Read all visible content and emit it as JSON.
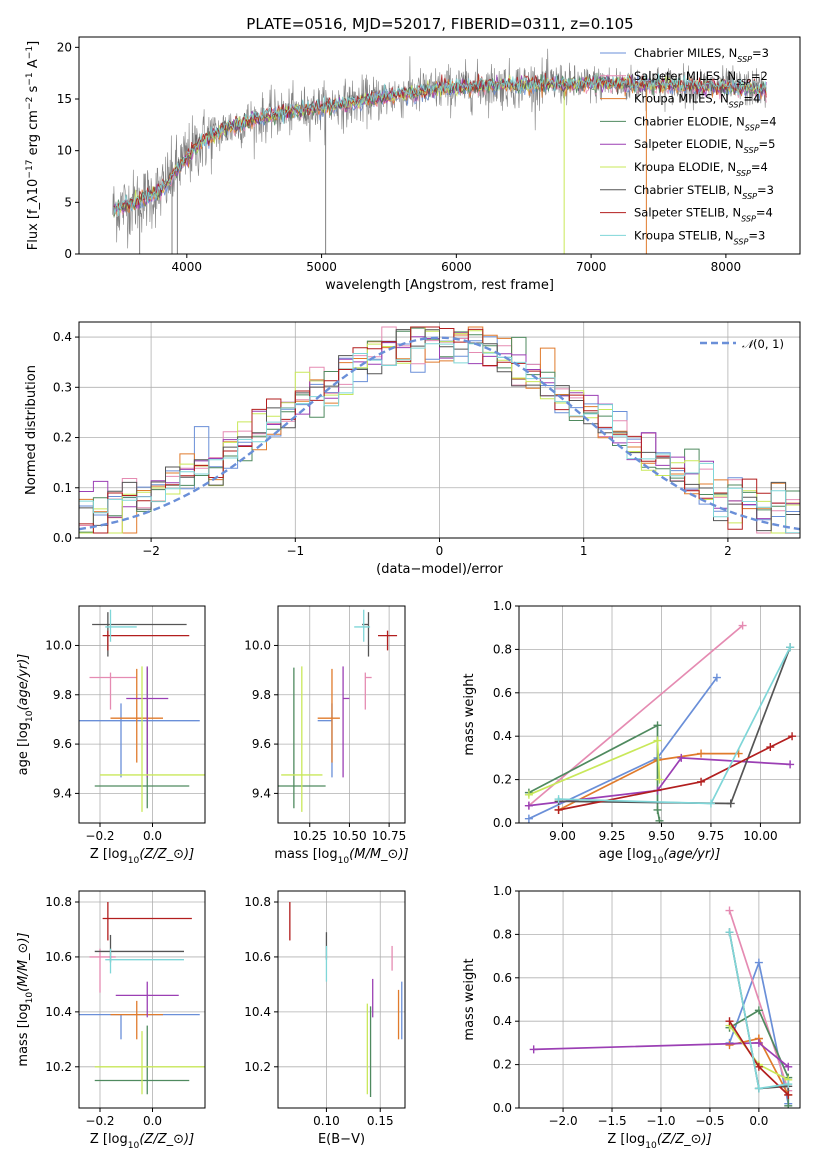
{
  "figure_title": "PLATE=0516, MJD=52017, FIBERID=0311, z=0.105",
  "colors": {
    "Chabrier MILES": "#6a8fd8",
    "Salpeter MILES": "#e58bb2",
    "Kroupa MILES": "#e07b2c",
    "Chabrier ELODIE": "#4f8a5f",
    "Salpeter ELODIE": "#9b3fb4",
    "Kroupa ELODIE": "#c9e85a",
    "Chabrier STELIB": "#555555",
    "Salpeter STELIB": "#b21e1e",
    "Kroupa STELIB": "#7fd6d8",
    "data": "#808080",
    "normal": "#6a8fd8"
  },
  "chart_data": [
    {
      "id": "spectrum",
      "type": "line",
      "title": "PLATE=0516, MJD=52017, FIBERID=0311, z=0.105",
      "xlabel": "wavelength [Angstrom, rest frame]",
      "ylabel": "Flux [f$_\\lambda$10$^{-17}$ erg cm$^{-2}$ s$^{-1}$ A$^{-1}$]",
      "xlim": [
        3200,
        8550
      ],
      "ylim": [
        0,
        21
      ],
      "xticks": [
        4000,
        5000,
        6000,
        7000,
        8000
      ],
      "yticks": [
        0,
        5,
        10,
        15,
        20
      ],
      "grid": false,
      "legend_position": "upper-right",
      "legend": [
        {
          "name": "Chabrier MILES",
          "nssp": "3"
        },
        {
          "name": "Salpeter MILES",
          "nssp": "2"
        },
        {
          "name": "Kroupa MILES",
          "nssp": "4"
        },
        {
          "name": "Chabrier ELODIE",
          "nssp": "4"
        },
        {
          "name": "Salpeter ELODIE",
          "nssp": "5"
        },
        {
          "name": "Kroupa ELODIE",
          "nssp": "4"
        },
        {
          "name": "Chabrier STELIB",
          "nssp": "3"
        },
        {
          "name": "Salpeter STELIB",
          "nssp": "4"
        },
        {
          "name": "Kroupa STELIB",
          "nssp": "3"
        }
      ],
      "continuum": {
        "x": [
          3450,
          3600,
          3800,
          3950,
          4100,
          4300,
          4500,
          4700,
          4900,
          5100,
          5300,
          5500,
          5700,
          5900,
          6100,
          6300,
          6500,
          6700,
          6900,
          7100,
          7300,
          7500,
          7700,
          7900,
          8100,
          8300
        ],
        "y": [
          4.3,
          4.9,
          6.0,
          8.6,
          10.8,
          12.2,
          13.0,
          13.6,
          14.0,
          14.4,
          14.8,
          15.3,
          15.6,
          16.0,
          16.2,
          16.3,
          16.4,
          16.4,
          16.4,
          16.5,
          16.4,
          16.4,
          16.3,
          16.2,
          16.1,
          15.9
        ]
      }
    },
    {
      "id": "residuals",
      "type": "histogram",
      "xlabel": "(data-model)/error",
      "ylabel": "Normed distribution",
      "xlim": [
        -2.5,
        2.5
      ],
      "ylim": [
        0,
        0.43
      ],
      "xticks": [
        -2,
        -1,
        0,
        1,
        2
      ],
      "yticks": [
        0.0,
        0.1,
        0.2,
        0.3,
        0.4
      ],
      "grid": true,
      "legend_position": "upper-right",
      "normal_label": "$\\mathcal{N}(0,1)$",
      "normal_mean": 0,
      "normal_sigma": 1
    },
    {
      "id": "age-vs-Z",
      "type": "errorbar",
      "xlabel": "Z [log$_{10}$(Z/Z$_\\odot$)]",
      "ylabel": "age  [log$_{10}$(age/yr)]",
      "xlim": [
        -0.28,
        0.2
      ],
      "ylim": [
        9.28,
        10.16
      ],
      "xticks": [
        -0.2,
        0.0
      ],
      "yticks": [
        9.4,
        9.6,
        9.8,
        10.0
      ],
      "grid": true,
      "points": [
        {
          "model": "Chabrier MILES",
          "x": -0.12,
          "xerr": [
            0.16,
            0.3
          ],
          "y": 9.695,
          "yerr": [
            0.23,
            0.07
          ]
        },
        {
          "model": "Salpeter MILES",
          "x": -0.16,
          "xerr": [
            0.08,
            0.1
          ],
          "y": 9.87,
          "yerr": [
            0.13,
            0.02
          ]
        },
        {
          "model": "Kroupa MILES",
          "x": -0.06,
          "xerr": [
            0.1,
            0.1
          ],
          "y": 9.705,
          "yerr": [
            0.18,
            0.2
          ]
        },
        {
          "model": "Chabrier ELODIE",
          "x": -0.02,
          "xerr": [
            0.2,
            0.16
          ],
          "y": 9.43,
          "yerr": [
            0.09,
            0.48
          ]
        },
        {
          "model": "Salpeter ELODIE",
          "x": -0.02,
          "xerr": [
            0.08,
            0.08
          ],
          "y": 9.785,
          "yerr": [
            0.32,
            0.13
          ]
        },
        {
          "model": "Kroupa ELODIE",
          "x": -0.04,
          "xerr": [
            0.16,
            0.24
          ],
          "y": 9.475,
          "yerr": [
            0.15,
            0.44
          ]
        },
        {
          "model": "Chabrier STELIB",
          "x": -0.17,
          "xerr": [
            0.06,
            0.3
          ],
          "y": 10.085,
          "yerr": [
            0.13,
            0.05
          ]
        },
        {
          "model": "Salpeter STELIB",
          "x": -0.17,
          "xerr": [
            0.02,
            0.31
          ],
          "y": 10.04,
          "yerr": [
            0.06,
            0.02
          ]
        },
        {
          "model": "Kroupa STELIB",
          "x": -0.16,
          "xerr": [
            0.02,
            0.1
          ],
          "y": 10.075,
          "yerr": [
            0.06,
            0.07
          ]
        }
      ]
    },
    {
      "id": "age-vs-mass",
      "type": "errorbar",
      "xlabel": "mass [log$_{10}$(M/M$_\\odot$)]",
      "ylabel": "",
      "xlim": [
        10.05,
        10.85
      ],
      "ylim": [
        9.28,
        10.16
      ],
      "xticks": [
        10.25,
        10.5,
        10.75
      ],
      "yticks": [
        9.4,
        9.6,
        9.8,
        10.0
      ],
      "grid": true,
      "points": [
        {
          "model": "Chabrier MILES",
          "x": 10.39,
          "xerr": [
            0.09,
            0.0
          ],
          "y": 9.695,
          "yerr": [
            0.23,
            0.07
          ]
        },
        {
          "model": "Salpeter MILES",
          "x": 10.6,
          "xerr": [
            0.0,
            0.04
          ],
          "y": 9.87,
          "yerr": [
            0.13,
            0.02
          ]
        },
        {
          "model": "Kroupa MILES",
          "x": 10.39,
          "xerr": [
            0.09,
            0.05
          ],
          "y": 9.705,
          "yerr": [
            0.18,
            0.2
          ]
        },
        {
          "model": "Chabrier ELODIE",
          "x": 10.15,
          "xerr": [
            0.14,
            0.2
          ],
          "y": 9.43,
          "yerr": [
            0.09,
            0.48
          ]
        },
        {
          "model": "Salpeter ELODIE",
          "x": 10.46,
          "xerr": [
            0.0,
            0.04
          ],
          "y": 9.785,
          "yerr": [
            0.32,
            0.13
          ]
        },
        {
          "model": "Kroupa ELODIE",
          "x": 10.2,
          "xerr": [
            0.13,
            0.13
          ],
          "y": 9.475,
          "yerr": [
            0.15,
            0.44
          ]
        },
        {
          "model": "Chabrier STELIB",
          "x": 10.62,
          "xerr": [
            0.04,
            0.0
          ],
          "y": 10.085,
          "yerr": [
            0.13,
            0.05
          ]
        },
        {
          "model": "Salpeter STELIB",
          "x": 10.74,
          "xerr": [
            0.06,
            0.06
          ],
          "y": 10.04,
          "yerr": [
            0.06,
            0.02
          ]
        },
        {
          "model": "Kroupa STELIB",
          "x": 10.59,
          "xerr": [
            0.06,
            0.04
          ],
          "y": 10.075,
          "yerr": [
            0.06,
            0.07
          ]
        }
      ]
    },
    {
      "id": "weight-vs-age",
      "type": "line",
      "xlabel": "age  [log$_{10}$(age/yr)]",
      "ylabel": "mass weight",
      "xlim": [
        8.78,
        10.2
      ],
      "ylim": [
        0,
        1
      ],
      "xticks": [
        9.0,
        9.25,
        9.5,
        9.75,
        10.0
      ],
      "yticks": [
        0.0,
        0.2,
        0.4,
        0.6,
        0.8,
        1.0
      ],
      "grid": true,
      "series": [
        {
          "model": "Chabrier MILES",
          "x": [
            8.83,
            9.48,
            9.78
          ],
          "y": [
            0.02,
            0.3,
            0.67
          ]
        },
        {
          "model": "Salpeter MILES",
          "x": [
            8.83,
            9.91
          ],
          "y": [
            0.08,
            0.91
          ]
        },
        {
          "model": "Kroupa MILES",
          "x": [
            8.98,
            9.48,
            9.7,
            9.89
          ],
          "y": [
            0.06,
            0.29,
            0.32,
            0.32
          ]
        },
        {
          "model": "Chabrier ELODIE",
          "x": [
            8.83,
            9.48,
            9.48,
            9.49
          ],
          "y": [
            0.14,
            0.45,
            0.06,
            0.01
          ]
        },
        {
          "model": "Salpeter ELODIE",
          "x": [
            8.83,
            9.48,
            9.6,
            10.15
          ],
          "y": [
            0.08,
            0.15,
            0.3,
            0.27
          ]
        },
        {
          "model": "Kroupa ELODIE",
          "x": [
            8.83,
            9.48,
            9.49
          ],
          "y": [
            0.13,
            0.38,
            0.2
          ]
        },
        {
          "model": "Chabrier STELIB",
          "x": [
            8.98,
            9.85,
            10.15
          ],
          "y": [
            0.1,
            0.09,
            0.81
          ]
        },
        {
          "model": "Salpeter STELIB",
          "x": [
            8.98,
            9.7,
            10.05,
            10.16
          ],
          "y": [
            0.06,
            0.19,
            0.35,
            0.4
          ]
        },
        {
          "model": "Kroupa STELIB",
          "x": [
            8.98,
            9.75,
            10.15
          ],
          "y": [
            0.11,
            0.09,
            0.81
          ]
        }
      ]
    },
    {
      "id": "mass-vs-Z",
      "type": "errorbar",
      "xlabel": "Z [log$_{10}$(Z/Z$_\\odot$)]",
      "ylabel": "mass [log$_{10}$(M/M$_\\odot$)]",
      "xlim": [
        -0.28,
        0.2
      ],
      "ylim": [
        10.05,
        10.84
      ],
      "xticks": [
        -0.2,
        0.0
      ],
      "yticks": [
        10.2,
        10.4,
        10.6,
        10.8
      ],
      "grid": true,
      "points": [
        {
          "model": "Chabrier MILES",
          "x": -0.12,
          "xerr": [
            0.16,
            0.3
          ],
          "y": 10.39,
          "yerr": [
            0.09,
            0.0
          ]
        },
        {
          "model": "Salpeter MILES",
          "x": -0.2,
          "xerr": [
            0.04,
            0.06
          ],
          "y": 10.6,
          "yerr": [
            0.13,
            0.03
          ]
        },
        {
          "model": "Kroupa MILES",
          "x": -0.06,
          "xerr": [
            0.1,
            0.1
          ],
          "y": 10.39,
          "yerr": [
            0.09,
            0.05
          ]
        },
        {
          "model": "Chabrier ELODIE",
          "x": -0.02,
          "xerr": [
            0.2,
            0.16
          ],
          "y": 10.15,
          "yerr": [
            0.05,
            0.2
          ]
        },
        {
          "model": "Salpeter ELODIE",
          "x": -0.02,
          "xerr": [
            0.12,
            0.12
          ],
          "y": 10.46,
          "yerr": [
            0.08,
            0.05
          ]
        },
        {
          "model": "Kroupa ELODIE",
          "x": -0.04,
          "xerr": [
            0.18,
            0.24
          ],
          "y": 10.2,
          "yerr": [
            0.1,
            0.13
          ]
        },
        {
          "model": "Chabrier STELIB",
          "x": -0.16,
          "xerr": [
            0.06,
            0.28
          ],
          "y": 10.62,
          "yerr": [
            0.04,
            0.06
          ]
        },
        {
          "model": "Salpeter STELIB",
          "x": -0.17,
          "xerr": [
            0.02,
            0.32
          ],
          "y": 10.74,
          "yerr": [
            0.08,
            0.06
          ]
        },
        {
          "model": "Kroupa STELIB",
          "x": -0.16,
          "xerr": [
            0.02,
            0.28
          ],
          "y": 10.59,
          "yerr": [
            0.05,
            0.04
          ]
        }
      ]
    },
    {
      "id": "mass-vs-EBV",
      "type": "errorbar",
      "xlabel": "E(B-V)",
      "ylabel": "",
      "xlim": [
        0.055,
        0.173
      ],
      "ylim": [
        10.05,
        10.84
      ],
      "xticks": [
        0.1,
        0.15
      ],
      "yticks": [
        10.2,
        10.4,
        10.6,
        10.8
      ],
      "grid": true,
      "points": [
        {
          "model": "Chabrier MILES",
          "x": 0.17,
          "xerr": [
            0,
            0
          ],
          "y": 10.39,
          "yerr": [
            0.09,
            0.12
          ]
        },
        {
          "model": "Salpeter MILES",
          "x": 0.161,
          "xerr": [
            0,
            0
          ],
          "y": 10.6,
          "yerr": [
            0.05,
            0.04
          ]
        },
        {
          "model": "Kroupa MILES",
          "x": 0.167,
          "xerr": [
            0,
            0
          ],
          "y": 10.39,
          "yerr": [
            0.09,
            0.09
          ]
        },
        {
          "model": "Chabrier ELODIE",
          "x": 0.141,
          "xerr": [
            0,
            0
          ],
          "y": 10.15,
          "yerr": [
            0.06,
            0.27
          ]
        },
        {
          "model": "Salpeter ELODIE",
          "x": 0.143,
          "xerr": [
            0,
            0
          ],
          "y": 10.46,
          "yerr": [
            0.08,
            0.06
          ]
        },
        {
          "model": "Kroupa ELODIE",
          "x": 0.138,
          "xerr": [
            0,
            0
          ],
          "y": 10.2,
          "yerr": [
            0.1,
            0.23
          ]
        },
        {
          "model": "Chabrier STELIB",
          "x": 0.1,
          "xerr": [
            0,
            0
          ],
          "y": 10.62,
          "yerr": [
            0.03,
            0.07
          ]
        },
        {
          "model": "Salpeter STELIB",
          "x": 0.066,
          "xerr": [
            0,
            0
          ],
          "y": 10.74,
          "yerr": [
            0.08,
            0.06
          ]
        },
        {
          "model": "Kroupa STELIB",
          "x": 0.1,
          "xerr": [
            0,
            0
          ],
          "y": 10.59,
          "yerr": [
            0.08,
            0.05
          ]
        }
      ]
    },
    {
      "id": "weight-vs-Z",
      "type": "line",
      "xlabel": "Z [log$_{10}$(Z/Z$_\\odot$)]",
      "ylabel": "mass weight",
      "xlim": [
        -2.45,
        0.42
      ],
      "ylim": [
        0,
        1
      ],
      "xticks": [
        -2.0,
        -1.5,
        -1.0,
        -0.5,
        0.0
      ],
      "yticks": [
        0.0,
        0.2,
        0.4,
        0.6,
        0.8,
        1.0
      ],
      "grid": true,
      "series": [
        {
          "model": "Chabrier MILES",
          "x": [
            -0.3,
            0.0,
            0.3
          ],
          "y": [
            0.3,
            0.67,
            0.02
          ]
        },
        {
          "model": "Salpeter MILES",
          "x": [
            -0.3,
            0.3
          ],
          "y": [
            0.91,
            0.08
          ]
        },
        {
          "model": "Kroupa MILES",
          "x": [
            -0.3,
            0.0,
            0.0,
            0.3
          ],
          "y": [
            0.29,
            0.32,
            0.32,
            0.06
          ]
        },
        {
          "model": "Chabrier ELODIE",
          "x": [
            -0.3,
            0.0,
            0.3,
            0.3
          ],
          "y": [
            0.37,
            0.45,
            0.14,
            0.01
          ]
        },
        {
          "model": "Salpeter ELODIE",
          "x": [
            -2.3,
            0.0,
            0.3
          ],
          "y": [
            0.27,
            0.3,
            0.19
          ]
        },
        {
          "model": "Kroupa ELODIE",
          "x": [
            -0.3,
            0.0,
            0.3
          ],
          "y": [
            0.38,
            0.2,
            0.13
          ]
        },
        {
          "model": "Chabrier STELIB",
          "x": [
            -0.3,
            0.0,
            0.3
          ],
          "y": [
            0.81,
            0.09,
            0.1
          ]
        },
        {
          "model": "Salpeter STELIB",
          "x": [
            -0.3,
            0.0,
            0.3
          ],
          "y": [
            0.4,
            0.19,
            0.06
          ]
        },
        {
          "model": "Kroupa STELIB",
          "x": [
            -0.3,
            0.0,
            0.3
          ],
          "y": [
            0.81,
            0.09,
            0.11
          ]
        }
      ]
    }
  ]
}
